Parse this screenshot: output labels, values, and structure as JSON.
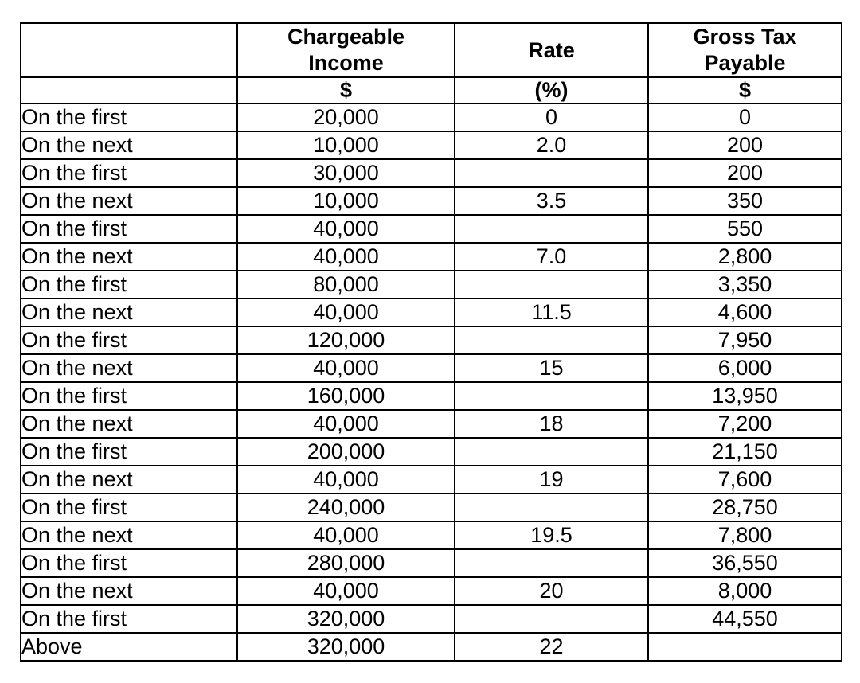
{
  "header": {
    "col1_title": "",
    "col2_title_line1": "Chargeable",
    "col2_title_line2": "Income",
    "col3_title": "Rate",
    "col4_title_line1": "Gross Tax",
    "col4_title_line2": "Payable",
    "col1_unit": "",
    "col2_unit": "$",
    "col3_unit": "(%)",
    "col4_unit": "$"
  },
  "rows": [
    {
      "label": "On the first",
      "income": "20,000",
      "rate": "0",
      "tax": "0"
    },
    {
      "label": "On the next",
      "income": "10,000",
      "rate": "2.0",
      "tax": "200"
    },
    {
      "label": "On the first",
      "income": "30,000",
      "rate": "",
      "tax": "200"
    },
    {
      "label": "On the next",
      "income": "10,000",
      "rate": "3.5",
      "tax": "350"
    },
    {
      "label": "On the first",
      "income": "40,000",
      "rate": "",
      "tax": "550"
    },
    {
      "label": "On the next",
      "income": "40,000",
      "rate": "7.0",
      "tax": "2,800"
    },
    {
      "label": "On the first",
      "income": "80,000",
      "rate": "",
      "tax": "3,350"
    },
    {
      "label": "On the next",
      "income": "40,000",
      "rate": "11.5",
      "tax": "4,600"
    },
    {
      "label": "On the first",
      "income": "120,000",
      "rate": "",
      "tax": "7,950"
    },
    {
      "label": "On the next",
      "income": "40,000",
      "rate": "15",
      "tax": "6,000"
    },
    {
      "label": "On the first",
      "income": "160,000",
      "rate": "",
      "tax": "13,950"
    },
    {
      "label": "On the next",
      "income": "40,000",
      "rate": "18",
      "tax": "7,200"
    },
    {
      "label": "On the first",
      "income": "200,000",
      "rate": "",
      "tax": "21,150"
    },
    {
      "label": "On the next",
      "income": "40,000",
      "rate": "19",
      "tax": "7,600"
    },
    {
      "label": "On the first",
      "income": "240,000",
      "rate": "",
      "tax": "28,750"
    },
    {
      "label": "On the next",
      "income": "40,000",
      "rate": "19.5",
      "tax": "7,800"
    },
    {
      "label": "On the first",
      "income": "280,000",
      "rate": "",
      "tax": "36,550"
    },
    {
      "label": "On the next",
      "income": "40,000",
      "rate": "20",
      "tax": "8,000"
    },
    {
      "label": "On the first",
      "income": "320,000",
      "rate": "",
      "tax": "44,550"
    },
    {
      "label": "Above",
      "income": "320,000",
      "rate": "22",
      "tax": ""
    }
  ],
  "colors": {
    "border": "#000000",
    "text": "#000000",
    "background": "#ffffff"
  }
}
